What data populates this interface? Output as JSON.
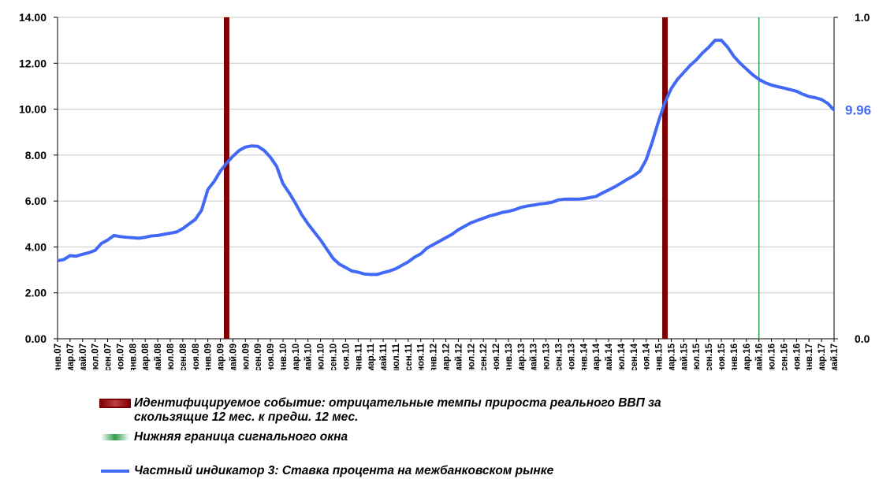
{
  "chart_data": {
    "type": "line",
    "categories": [
      "янв.07",
      null,
      "мар.07",
      null,
      "май.07",
      null,
      "июл.07",
      null,
      "сен.07",
      null,
      "ноя.07",
      null,
      "янв.08",
      null,
      "мар.08",
      null,
      "май.08",
      null,
      "июл.08",
      null,
      "сен.08",
      null,
      "ноя.08",
      null,
      "янв.09",
      null,
      "мар.09",
      null,
      "май.09",
      null,
      "июл.09",
      null,
      "сен.09",
      null,
      "ноя.09",
      null,
      "янв.10",
      null,
      "мар.10",
      null,
      "май.10",
      null,
      "июл.10",
      null,
      "сен.10",
      null,
      "ноя.10",
      null,
      "янв.11",
      null,
      "мар.11",
      null,
      "май.11",
      null,
      "июл.11",
      null,
      "сен.11",
      null,
      "ноя.11",
      null,
      "янв.12",
      null,
      "мар.12",
      null,
      "май.12",
      null,
      "июл.12",
      null,
      "сен.12",
      null,
      "ноя.12",
      null,
      "янв.13",
      null,
      "мар.13",
      null,
      "май.13",
      null,
      "июл.13",
      null,
      "сен.13",
      null,
      "ноя.13",
      null,
      "янв.14",
      null,
      "мар.14",
      null,
      "май.14",
      null,
      "июл.14",
      null,
      "сен.14",
      null,
      "ноя.14",
      null,
      "янв.15",
      null,
      "мар.15",
      null,
      "май.15",
      null,
      "июл.15",
      null,
      "сен.15",
      null,
      "ноя.15",
      null,
      "янв.16",
      null,
      "мар.16",
      null,
      "май.16",
      null,
      "июл.16",
      null,
      "сен.16",
      null,
      "ноя.16",
      null,
      "янв.17",
      null,
      "мар.17",
      null,
      "май.17"
    ],
    "series": [
      {
        "name": "Идентифицируемое событие: отрицательные темпы прироста реального ВВП за скользящие 12 мес. к предш. 12 мес.",
        "type": "bar",
        "axis": "y2",
        "color": "#7f0000",
        "values": [
          null,
          null,
          null,
          null,
          null,
          null,
          null,
          null,
          null,
          null,
          null,
          null,
          null,
          null,
          null,
          null,
          null,
          null,
          null,
          null,
          null,
          null,
          null,
          null,
          null,
          null,
          null,
          1,
          null,
          null,
          null,
          null,
          null,
          null,
          null,
          null,
          null,
          null,
          null,
          null,
          null,
          null,
          null,
          null,
          null,
          null,
          null,
          null,
          null,
          null,
          null,
          null,
          null,
          null,
          null,
          null,
          null,
          null,
          null,
          null,
          null,
          null,
          null,
          null,
          null,
          null,
          null,
          null,
          null,
          null,
          null,
          null,
          null,
          null,
          null,
          null,
          null,
          null,
          null,
          null,
          null,
          null,
          null,
          null,
          null,
          null,
          null,
          null,
          null,
          null,
          null,
          null,
          null,
          null,
          null,
          null,
          null,
          1,
          null,
          null,
          null,
          null,
          null,
          null,
          null,
          null,
          null,
          null,
          null,
          null,
          null,
          null,
          null,
          null,
          null,
          null,
          null,
          null,
          null,
          null,
          null,
          null,
          null,
          null,
          null
        ]
      },
      {
        "name": "Нижняя граница сигнального окна",
        "type": "bar",
        "axis": "y2",
        "color": "#2e9c4a",
        "values": [
          null,
          null,
          null,
          null,
          null,
          null,
          null,
          null,
          null,
          null,
          null,
          null,
          null,
          null,
          null,
          null,
          null,
          null,
          null,
          null,
          null,
          null,
          null,
          null,
          null,
          null,
          null,
          null,
          null,
          null,
          null,
          null,
          null,
          null,
          null,
          null,
          null,
          null,
          null,
          null,
          null,
          null,
          null,
          null,
          null,
          null,
          null,
          null,
          null,
          null,
          null,
          null,
          null,
          null,
          null,
          null,
          null,
          null,
          null,
          null,
          null,
          null,
          null,
          null,
          null,
          null,
          null,
          null,
          null,
          null,
          null,
          null,
          null,
          null,
          null,
          null,
          null,
          null,
          null,
          null,
          null,
          null,
          null,
          null,
          null,
          null,
          null,
          null,
          null,
          null,
          null,
          null,
          null,
          null,
          null,
          null,
          null,
          null,
          null,
          null,
          null,
          null,
          null,
          null,
          null,
          null,
          null,
          null,
          null,
          null,
          null,
          null,
          1,
          null,
          null,
          null,
          null,
          null,
          null,
          null,
          null,
          null,
          null,
          null,
          null
        ]
      },
      {
        "name": "Частный индикатор 3: Ставка процента на межбанковском рынке",
        "type": "line",
        "color": "#4169f5",
        "values": [
          3.4,
          3.45,
          3.62,
          3.6,
          3.68,
          3.75,
          3.85,
          4.15,
          4.3,
          4.5,
          4.45,
          4.42,
          4.4,
          4.38,
          4.42,
          4.48,
          4.5,
          4.55,
          4.6,
          4.65,
          4.8,
          5.0,
          5.2,
          5.6,
          6.5,
          6.85,
          7.3,
          7.65,
          7.95,
          8.2,
          8.35,
          8.4,
          8.38,
          8.2,
          7.9,
          7.5,
          6.75,
          6.35,
          5.9,
          5.4,
          5.0,
          4.65,
          4.3,
          3.9,
          3.5,
          3.25,
          3.1,
          2.95,
          2.9,
          2.82,
          2.8,
          2.8,
          2.88,
          2.95,
          3.05,
          3.2,
          3.35,
          3.55,
          3.7,
          3.95,
          4.1,
          4.25,
          4.4,
          4.55,
          4.75,
          4.9,
          5.05,
          5.15,
          5.25,
          5.35,
          5.42,
          5.5,
          5.55,
          5.62,
          5.72,
          5.78,
          5.82,
          5.87,
          5.9,
          5.95,
          6.05,
          6.08,
          6.08,
          6.08,
          6.1,
          6.15,
          6.2,
          6.35,
          6.48,
          6.62,
          6.78,
          6.95,
          7.1,
          7.3,
          7.8,
          8.6,
          9.5,
          10.3,
          10.9,
          11.3,
          11.6,
          11.9,
          12.15,
          12.45,
          12.7,
          13.0,
          13.0,
          12.7,
          12.3,
          12.0,
          11.75,
          11.5,
          11.3,
          11.15,
          11.05,
          10.98,
          10.92,
          10.85,
          10.78,
          10.65,
          10.55,
          10.5,
          10.42,
          10.25,
          9.96
        ],
        "last_value_label": "9.96"
      }
    ],
    "ylim": [
      0,
      14
    ],
    "yticks": [
      {
        "value": 0,
        "label": "0.00"
      },
      {
        "value": 2,
        "label": "2.00"
      },
      {
        "value": 4,
        "label": "4.00"
      },
      {
        "value": 6,
        "label": "6.00"
      },
      {
        "value": 8,
        "label": "8.00"
      },
      {
        "value": 10,
        "label": "10.00"
      },
      {
        "value": 12,
        "label": "12.00"
      },
      {
        "value": 14,
        "label": "14.00"
      }
    ],
    "y2lim": [
      0,
      1
    ],
    "y2ticks": [
      {
        "value": 0,
        "label": "0.0"
      },
      {
        "value": 1,
        "label": "1.0"
      }
    ],
    "grid": true,
    "legend": "bottom"
  }
}
